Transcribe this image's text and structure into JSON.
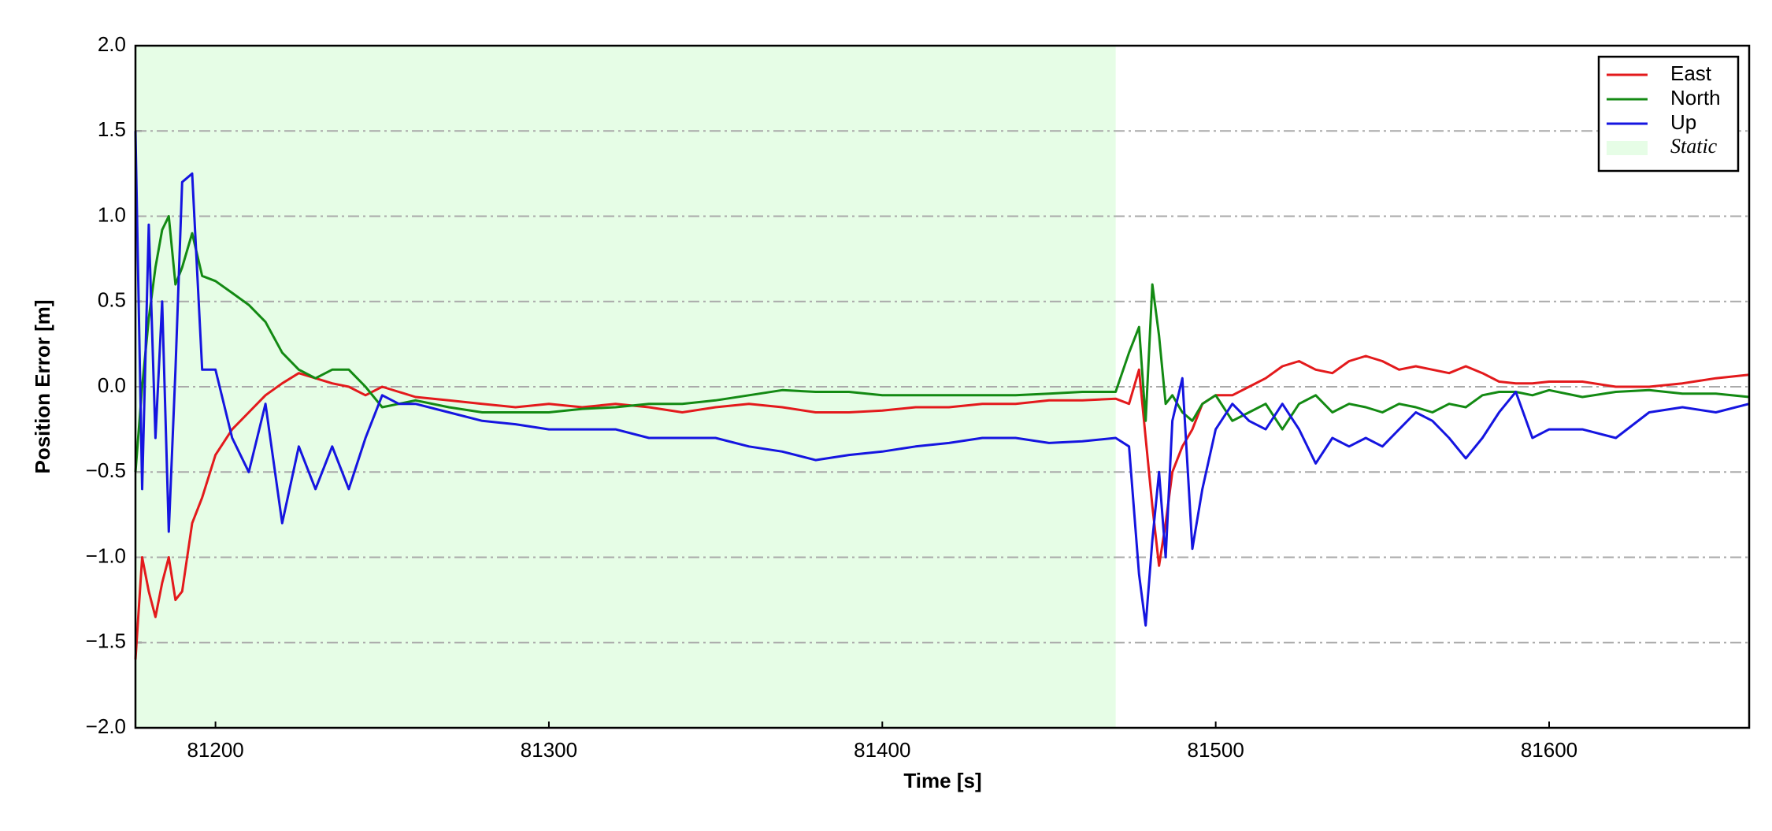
{
  "chart_data": {
    "type": "line",
    "xlabel": "Time [s]",
    "ylabel": "Position Error [m]",
    "x": [
      81176,
      81178,
      81180,
      81182,
      81184,
      81186,
      81188,
      81190,
      81193,
      81196,
      81200,
      81205,
      81210,
      81215,
      81220,
      81225,
      81230,
      81235,
      81240,
      81245,
      81250,
      81255,
      81260,
      81270,
      81280,
      81290,
      81300,
      81310,
      81320,
      81330,
      81340,
      81350,
      81360,
      81370,
      81380,
      81390,
      81400,
      81410,
      81420,
      81430,
      81440,
      81450,
      81460,
      81470,
      81474,
      81477,
      81479,
      81481,
      81483,
      81485,
      81487,
      81490,
      81493,
      81496,
      81500,
      81505,
      81510,
      81515,
      81520,
      81525,
      81530,
      81535,
      81540,
      81545,
      81550,
      81555,
      81560,
      81565,
      81570,
      81575,
      81580,
      81585,
      81590,
      81595,
      81600,
      81610,
      81620,
      81630,
      81640,
      81650,
      81660
    ],
    "series": [
      {
        "name": "East",
        "color": "#e31a1c",
        "values": [
          -1.6,
          -1.0,
          -1.2,
          -1.35,
          -1.15,
          -1.0,
          -1.25,
          -1.2,
          -0.8,
          -0.65,
          -0.4,
          -0.25,
          -0.15,
          -0.05,
          0.02,
          0.08,
          0.05,
          0.02,
          0.0,
          -0.05,
          0.0,
          -0.03,
          -0.06,
          -0.08,
          -0.1,
          -0.12,
          -0.1,
          -0.12,
          -0.1,
          -0.12,
          -0.15,
          -0.12,
          -0.1,
          -0.12,
          -0.15,
          -0.15,
          -0.14,
          -0.12,
          -0.12,
          -0.1,
          -0.1,
          -0.08,
          -0.08,
          -0.07,
          -0.1,
          0.1,
          -0.3,
          -0.7,
          -1.05,
          -0.8,
          -0.5,
          -0.35,
          -0.25,
          -0.1,
          -0.05,
          -0.05,
          0.0,
          0.05,
          0.12,
          0.15,
          0.1,
          0.08,
          0.15,
          0.18,
          0.15,
          0.1,
          0.12,
          0.1,
          0.08,
          0.12,
          0.08,
          0.03,
          0.02,
          0.02,
          0.03,
          0.03,
          0.0,
          0.0,
          0.02,
          0.05,
          0.07
        ]
      },
      {
        "name": "North",
        "color": "#138a13",
        "values": [
          -0.5,
          0.0,
          0.4,
          0.7,
          0.92,
          1.0,
          0.6,
          0.7,
          0.9,
          0.65,
          0.62,
          0.55,
          0.48,
          0.38,
          0.2,
          0.1,
          0.05,
          0.1,
          0.1,
          0.0,
          -0.12,
          -0.1,
          -0.08,
          -0.12,
          -0.15,
          -0.15,
          -0.15,
          -0.13,
          -0.12,
          -0.1,
          -0.1,
          -0.08,
          -0.05,
          -0.02,
          -0.03,
          -0.03,
          -0.05,
          -0.05,
          -0.05,
          -0.05,
          -0.05,
          -0.04,
          -0.03,
          -0.03,
          0.2,
          0.35,
          -0.2,
          0.6,
          0.3,
          -0.1,
          -0.05,
          -0.15,
          -0.2,
          -0.1,
          -0.05,
          -0.2,
          -0.15,
          -0.1,
          -0.25,
          -0.1,
          -0.05,
          -0.15,
          -0.1,
          -0.12,
          -0.15,
          -0.1,
          -0.12,
          -0.15,
          -0.1,
          -0.12,
          -0.05,
          -0.03,
          -0.03,
          -0.05,
          -0.02,
          -0.06,
          -0.03,
          -0.02,
          -0.04,
          -0.04,
          -0.06
        ]
      },
      {
        "name": "Up",
        "color": "#1515e0",
        "values": [
          1.5,
          -0.6,
          0.95,
          -0.3,
          0.5,
          -0.85,
          0.1,
          1.2,
          1.25,
          0.1,
          0.1,
          -0.3,
          -0.5,
          -0.1,
          -0.8,
          -0.35,
          -0.6,
          -0.35,
          -0.6,
          -0.3,
          -0.05,
          -0.1,
          -0.1,
          -0.15,
          -0.2,
          -0.22,
          -0.25,
          -0.25,
          -0.25,
          -0.3,
          -0.3,
          -0.3,
          -0.35,
          -0.38,
          -0.43,
          -0.4,
          -0.38,
          -0.35,
          -0.33,
          -0.3,
          -0.3,
          -0.33,
          -0.32,
          -0.3,
          -0.35,
          -1.1,
          -1.4,
          -0.9,
          -0.5,
          -1.0,
          -0.2,
          0.05,
          -0.95,
          -0.6,
          -0.25,
          -0.1,
          -0.2,
          -0.25,
          -0.1,
          -0.25,
          -0.45,
          -0.3,
          -0.35,
          -0.3,
          -0.35,
          -0.25,
          -0.15,
          -0.2,
          -0.3,
          -0.42,
          -0.3,
          -0.15,
          -0.03,
          -0.3,
          -0.25,
          -0.25,
          -0.3,
          -0.15,
          -0.12,
          -0.15,
          -0.1
        ]
      }
    ],
    "shade": {
      "name": "Static",
      "color": "#e6fde6",
      "x": [
        81176,
        81470
      ]
    },
    "xlim": [
      81176,
      81660
    ],
    "xticks": [
      81200,
      81300,
      81400,
      81500,
      81600
    ],
    "ylim": [
      -2,
      2
    ],
    "yticks": [
      {
        "value": -2,
        "label": "−2.0"
      },
      {
        "value": -1.5,
        "label": "−1.5"
      },
      {
        "value": -1,
        "label": "−1.0"
      },
      {
        "value": -0.5,
        "label": "−0.5"
      },
      {
        "value": 0,
        "label": "0.0"
      },
      0.5,
      {
        "value": 1,
        "label": "1.0"
      },
      1.5,
      {
        "value": 2,
        "label": "2.0"
      }
    ],
    "grid": true,
    "legend": "upper right"
  }
}
